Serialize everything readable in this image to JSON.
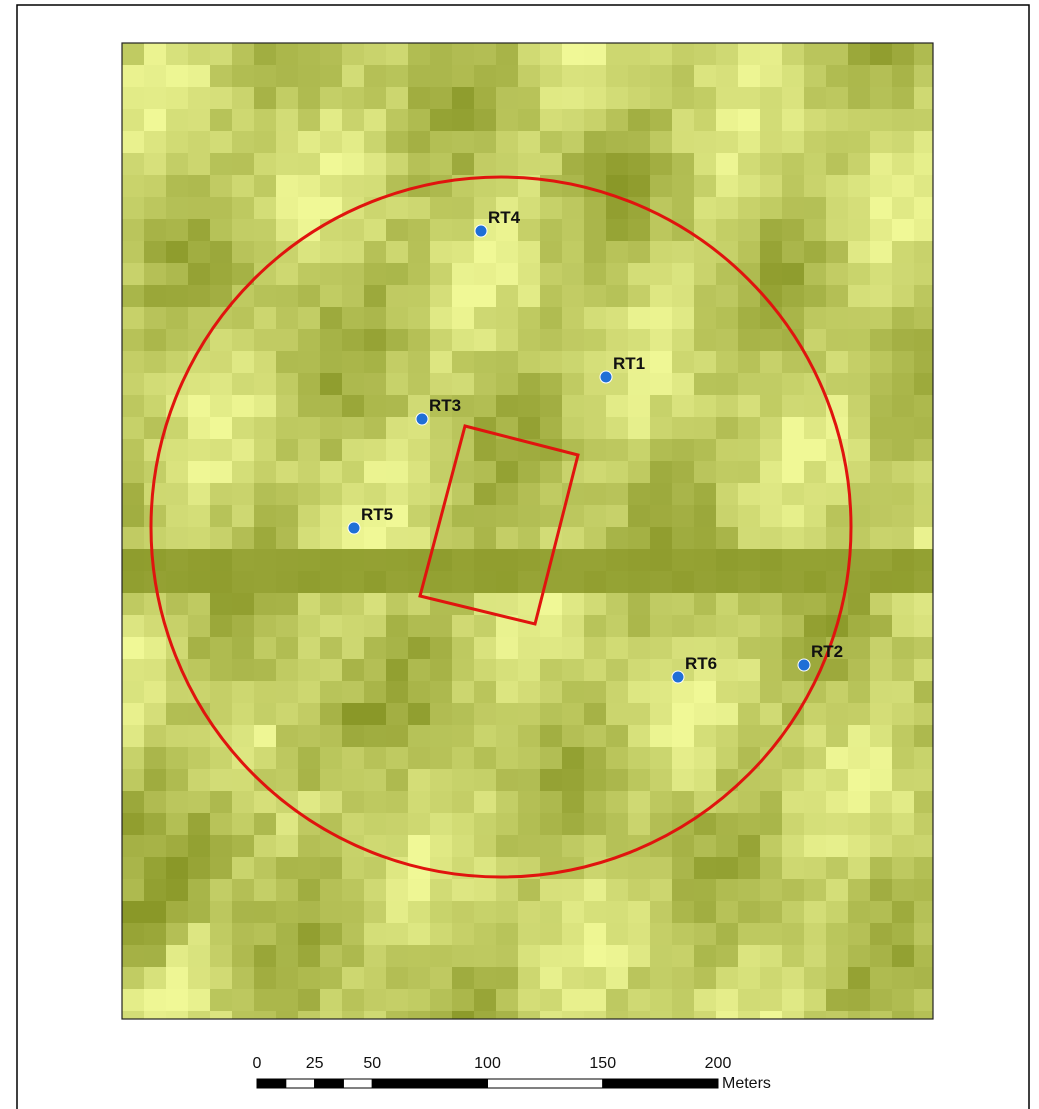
{
  "map": {
    "points": [
      {
        "label": "RT1"
      },
      {
        "label": "RT2"
      },
      {
        "label": "RT3"
      },
      {
        "label": "RT4"
      },
      {
        "label": "RT5"
      },
      {
        "label": "RT6"
      }
    ],
    "scale_bar": {
      "ticks": [
        0,
        25,
        50,
        100,
        150,
        200
      ],
      "unit": "Meters"
    }
  }
}
